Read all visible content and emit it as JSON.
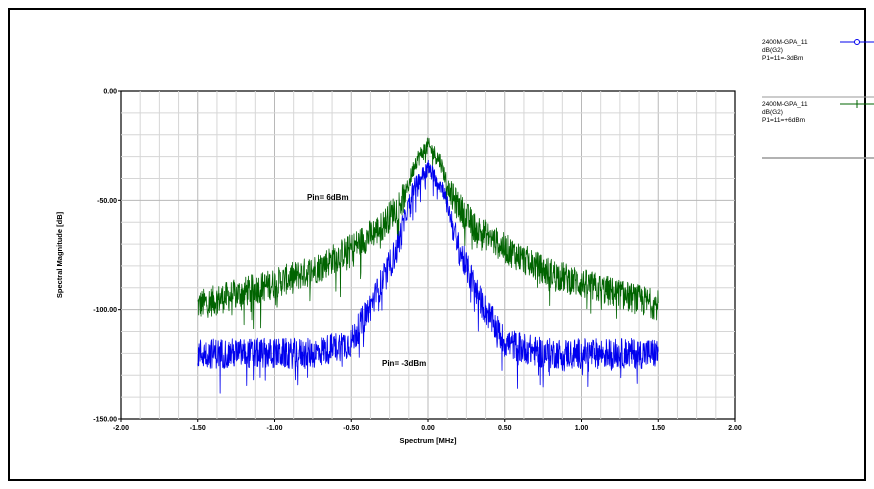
{
  "chart_data": {
    "type": "line",
    "xlabel": "Spectrum [MHz]",
    "ylabel": "Spectral Magnitude [dB]",
    "xlim": [
      -2.0,
      2.0
    ],
    "ylim": [
      -150,
      0
    ],
    "x_ticks": [
      "-2.00",
      "-1.50",
      "-1.00",
      "-0.50",
      "0.00",
      "0.50",
      "1.00",
      "1.50",
      "2.00"
    ],
    "y_ticks": [
      "0.00",
      "-50.00",
      "-100.00",
      "-150.00"
    ],
    "grid": true,
    "series": [
      {
        "name": "2400M-GPA_11 dB(G2) Pin=-3dBm",
        "color": "#0000ee",
        "x": [
          -1.5,
          -1.25,
          -1.0,
          -0.75,
          -0.5,
          -0.35,
          -0.2,
          -0.1,
          0.0,
          0.1,
          0.2,
          0.35,
          0.5,
          0.75,
          1.0,
          1.25,
          1.5
        ],
        "y": [
          -120,
          -120,
          -120,
          -120,
          -115,
          -95,
          -72,
          -45,
          -35,
          -45,
          -72,
          -97,
          -115,
          -120,
          -120,
          -120,
          -120
        ]
      },
      {
        "name": "2400M-GPA_11 dB(G2) Pin=+6dBm",
        "color": "#006400",
        "x": [
          -1.5,
          -1.25,
          -1.0,
          -0.75,
          -0.5,
          -0.3,
          -0.15,
          -0.08,
          0.0,
          0.08,
          0.15,
          0.3,
          0.5,
          0.75,
          1.0,
          1.25,
          1.5
        ],
        "y": [
          -98,
          -93,
          -88,
          -82,
          -72,
          -62,
          -48,
          -32,
          -25,
          -32,
          -48,
          -62,
          -72,
          -82,
          -88,
          -93,
          -98
        ]
      }
    ],
    "annotations": [
      "Pin= 6dBm",
      "Pin= -3dBm"
    ]
  },
  "legend": [
    {
      "line1": "2400M-GPA_11",
      "line2": "dB(G2)",
      "line3": "P1=11=-3dBm",
      "color": "#0000ee"
    },
    {
      "line1": "2400M-GPA_11",
      "line2": "dB(G2)",
      "line3": "P1=11=+6dBm",
      "color": "#006400"
    }
  ]
}
